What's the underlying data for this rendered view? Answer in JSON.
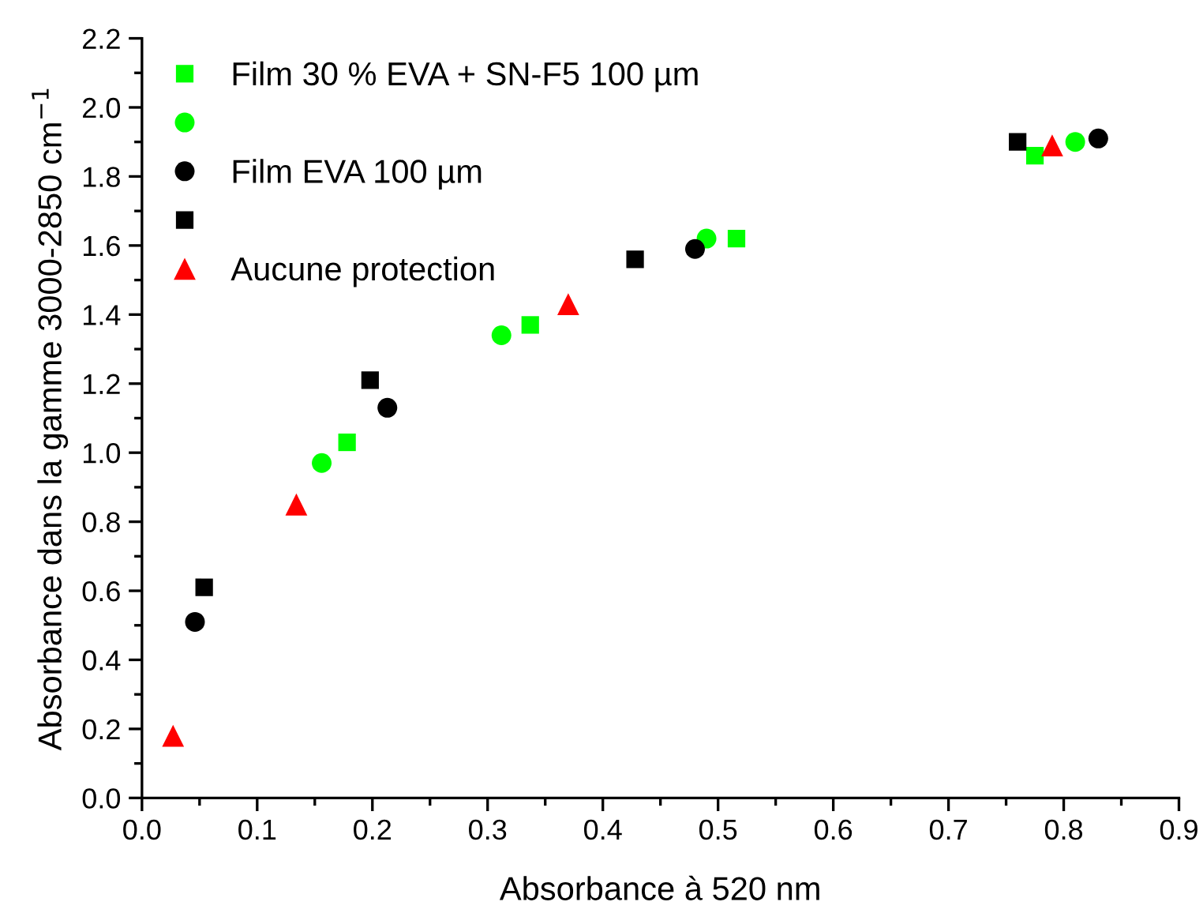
{
  "chart_data": {
    "type": "scatter",
    "xlabel": "Absorbance à 520 nm",
    "ylabel": "Absorbance dans la gamme 3000-2850 cm$^{−1}$",
    "xlim": [
      0,
      0.9
    ],
    "ylim": [
      0,
      2.2
    ],
    "xticks": [
      {
        "value": 0,
        "label": "0.0"
      },
      0.1,
      0.2,
      0.3,
      0.4,
      0.5,
      0.6,
      0.7,
      0.8,
      0.9
    ],
    "yticks": [
      {
        "value": 0,
        "label": "0.0"
      },
      0.2,
      0.4,
      0.6,
      0.8,
      {
        "value": 1,
        "label": "1.0"
      },
      1.2,
      1.4,
      1.6,
      1.8,
      {
        "value": 2,
        "label": "2.0"
      },
      2.2
    ],
    "grid": false,
    "legend": "top left",
    "series": [
      {
        "name": "Film 30 % EVA + SN-F5 100 µm",
        "color": "#00ff00",
        "marker": "square",
        "x": [
          0.178,
          0.337,
          0.516,
          0.775
        ],
        "values": [
          1.03,
          1.37,
          1.62,
          1.86
        ]
      },
      {
        "color": "#00ff00",
        "marker": "circle",
        "x": [
          0.156,
          0.312,
          0.49,
          0.81
        ],
        "values": [
          0.97,
          1.34,
          1.62,
          1.9
        ]
      },
      {
        "name": "Film EVA 100 µm",
        "color": "#000000",
        "marker": "circle",
        "x": [
          0.046,
          0.213,
          0.48,
          0.83
        ],
        "values": [
          0.51,
          1.13,
          1.59,
          1.91
        ]
      },
      {
        "color": "#000000",
        "marker": "square",
        "x": [
          0.054,
          0.198,
          0.428,
          0.76
        ],
        "values": [
          0.61,
          1.21,
          1.56,
          1.9
        ]
      },
      {
        "name": "Aucune protection",
        "color": "#ff0000",
        "marker": "triangle",
        "x": [
          0.027,
          0.134,
          0.37,
          0.79
        ],
        "values": [
          0.18,
          0.85,
          1.43,
          1.89
        ]
      }
    ]
  }
}
